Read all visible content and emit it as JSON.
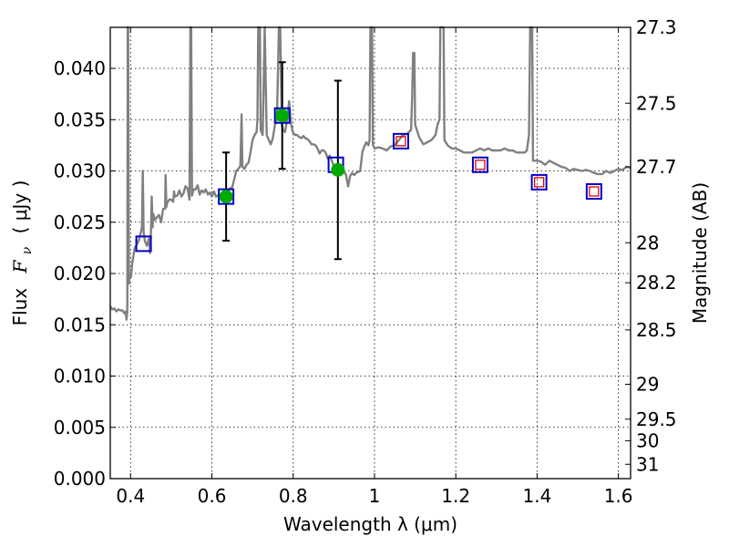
{
  "chart_data": {
    "type": "scatter",
    "xlabel": "Wavelength  λ (μm)",
    "ylabel_text": "Flux",
    "ylabel_math": "F",
    "ylabel_sub": "ν",
    "ylabel_unit": "( μJy )",
    "y2label": "Magnitude (AB)",
    "xlim": [
      0.35,
      1.63
    ],
    "ylim": [
      0.0,
      0.044
    ],
    "grid": true,
    "x_ticks": [
      {
        "value": 0.4,
        "label": "0.4"
      },
      {
        "value": 0.6,
        "label": "0.6"
      },
      {
        "value": 0.8,
        "label": "0.8"
      },
      {
        "value": 1.0,
        "label": "1"
      },
      {
        "value": 1.2,
        "label": "1.2"
      },
      {
        "value": 1.4,
        "label": "1.4"
      },
      {
        "value": 1.6,
        "label": "1.6"
      }
    ],
    "y_ticks": [
      {
        "value": 0.0,
        "label": "0.000"
      },
      {
        "value": 0.005,
        "label": "0.005"
      },
      {
        "value": 0.01,
        "label": "0.010"
      },
      {
        "value": 0.015,
        "label": "0.015"
      },
      {
        "value": 0.02,
        "label": "0.020"
      },
      {
        "value": 0.025,
        "label": "0.025"
      },
      {
        "value": 0.03,
        "label": "0.030"
      },
      {
        "value": 0.035,
        "label": "0.035"
      },
      {
        "value": 0.04,
        "label": "0.040"
      }
    ],
    "y2_ticks": [
      {
        "flux": 0.044,
        "label": "27.3"
      },
      {
        "flux": 0.0366,
        "label": "27.5"
      },
      {
        "flux": 0.0304,
        "label": "27.7"
      },
      {
        "flux": 0.023,
        "label": "28"
      },
      {
        "flux": 0.0191,
        "label": "28.2"
      },
      {
        "flux": 0.0145,
        "label": "28.5"
      },
      {
        "flux": 0.0092,
        "label": "29"
      },
      {
        "flux": 0.0058,
        "label": "29.5"
      },
      {
        "flux": 0.0037,
        "label": "30"
      },
      {
        "flux": 0.0014,
        "label": "31"
      }
    ],
    "series": [
      {
        "kind": "spectrum",
        "color": "#808080",
        "points": [
          [
            0.35,
            0.0168
          ],
          [
            0.355,
            0.0165
          ],
          [
            0.36,
            0.0166
          ],
          [
            0.365,
            0.0163
          ],
          [
            0.37,
            0.0165
          ],
          [
            0.375,
            0.0164
          ],
          [
            0.38,
            0.0164
          ],
          [
            0.385,
            0.0161
          ],
          [
            0.388,
            0.0163
          ],
          [
            0.39,
            0.0155
          ],
          [
            0.392,
            0.0162
          ],
          [
            0.393,
            0.044
          ],
          [
            0.394,
            0.044
          ],
          [
            0.396,
            0.019
          ],
          [
            0.398,
            0.02
          ],
          [
            0.401,
            0.0197
          ],
          [
            0.404,
            0.021
          ],
          [
            0.41,
            0.0225
          ],
          [
            0.415,
            0.0228
          ],
          [
            0.42,
            0.0232
          ],
          [
            0.425,
            0.024
          ],
          [
            0.428,
            0.0245
          ],
          [
            0.43,
            0.03
          ],
          [
            0.432,
            0.024
          ],
          [
            0.435,
            0.0232
          ],
          [
            0.44,
            0.0227
          ],
          [
            0.445,
            0.0234
          ],
          [
            0.448,
            0.022
          ],
          [
            0.45,
            0.0239
          ],
          [
            0.452,
            0.0275
          ],
          [
            0.454,
            0.0245
          ],
          [
            0.456,
            0.0258
          ],
          [
            0.46,
            0.0252
          ],
          [
            0.465,
            0.0255
          ],
          [
            0.47,
            0.0257
          ],
          [
            0.475,
            0.025
          ],
          [
            0.48,
            0.0263
          ],
          [
            0.485,
            0.0263
          ],
          [
            0.486,
            0.0296
          ],
          [
            0.488,
            0.0265
          ],
          [
            0.49,
            0.0269
          ],
          [
            0.495,
            0.0272
          ],
          [
            0.5,
            0.0272
          ],
          [
            0.505,
            0.027
          ],
          [
            0.507,
            0.028
          ],
          [
            0.509,
            0.0275
          ],
          [
            0.515,
            0.0276
          ],
          [
            0.52,
            0.0281
          ],
          [
            0.525,
            0.0275
          ],
          [
            0.53,
            0.0278
          ],
          [
            0.535,
            0.0285
          ],
          [
            0.54,
            0.0283
          ],
          [
            0.545,
            0.0272
          ],
          [
            0.547,
            0.044
          ],
          [
            0.549,
            0.044
          ],
          [
            0.551,
            0.0276
          ],
          [
            0.555,
            0.0282
          ],
          [
            0.56,
            0.0282
          ],
          [
            0.565,
            0.0286
          ],
          [
            0.57,
            0.0277
          ],
          [
            0.575,
            0.0281
          ],
          [
            0.58,
            0.0279
          ],
          [
            0.585,
            0.0282
          ],
          [
            0.59,
            0.0277
          ],
          [
            0.595,
            0.0279
          ],
          [
            0.6,
            0.0275
          ],
          [
            0.605,
            0.028
          ],
          [
            0.61,
            0.0275
          ],
          [
            0.615,
            0.0276
          ],
          [
            0.62,
            0.0275
          ],
          [
            0.625,
            0.0276
          ],
          [
            0.63,
            0.028
          ],
          [
            0.635,
            0.0278
          ],
          [
            0.64,
            0.0281
          ],
          [
            0.645,
            0.0283
          ],
          [
            0.65,
            0.0284
          ],
          [
            0.655,
            0.0292
          ],
          [
            0.66,
            0.03
          ],
          [
            0.665,
            0.0302
          ],
          [
            0.67,
            0.0305
          ],
          [
            0.673,
            0.0355
          ],
          [
            0.675,
            0.0304
          ],
          [
            0.68,
            0.0302
          ],
          [
            0.685,
            0.0306
          ],
          [
            0.69,
            0.0308
          ],
          [
            0.695,
            0.0318
          ],
          [
            0.7,
            0.033
          ],
          [
            0.705,
            0.0335
          ],
          [
            0.71,
            0.0338
          ],
          [
            0.712,
            0.035
          ],
          [
            0.714,
            0.044
          ],
          [
            0.718,
            0.044
          ],
          [
            0.72,
            0.034
          ],
          [
            0.725,
            0.0335
          ],
          [
            0.73,
            0.044
          ],
          [
            0.735,
            0.0335
          ],
          [
            0.74,
            0.033
          ],
          [
            0.745,
            0.0326
          ],
          [
            0.75,
            0.0332
          ],
          [
            0.755,
            0.0345
          ],
          [
            0.76,
            0.035
          ],
          [
            0.765,
            0.044
          ],
          [
            0.768,
            0.044
          ],
          [
            0.772,
            0.0345
          ],
          [
            0.775,
            0.034
          ],
          [
            0.78,
            0.0338
          ],
          [
            0.785,
            0.035
          ],
          [
            0.79,
            0.0368
          ],
          [
            0.795,
            0.0345
          ],
          [
            0.8,
            0.0337
          ],
          [
            0.805,
            0.0335
          ],
          [
            0.81,
            0.0335
          ],
          [
            0.815,
            0.0333
          ],
          [
            0.82,
            0.0332
          ],
          [
            0.825,
            0.0334
          ],
          [
            0.83,
            0.0332
          ],
          [
            0.835,
            0.0331
          ],
          [
            0.84,
            0.0329
          ],
          [
            0.845,
            0.0326
          ],
          [
            0.85,
            0.0326
          ],
          [
            0.855,
            0.0325
          ],
          [
            0.86,
            0.0322
          ],
          [
            0.865,
            0.0317
          ],
          [
            0.87,
            0.032
          ],
          [
            0.875,
            0.032
          ],
          [
            0.88,
            0.0318
          ],
          [
            0.885,
            0.0312
          ],
          [
            0.89,
            0.0315
          ],
          [
            0.895,
            0.031
          ],
          [
            0.9,
            0.0305
          ],
          [
            0.905,
            0.03
          ],
          [
            0.91,
            0.0298
          ],
          [
            0.915,
            0.0303
          ],
          [
            0.92,
            0.0302
          ],
          [
            0.925,
            0.03
          ],
          [
            0.93,
            0.0296
          ],
          [
            0.935,
            0.0285
          ],
          [
            0.94,
            0.0295
          ],
          [
            0.945,
            0.0298
          ],
          [
            0.95,
            0.0296
          ],
          [
            0.955,
            0.0298
          ],
          [
            0.96,
            0.0299
          ],
          [
            0.965,
            0.03
          ],
          [
            0.97,
            0.0318
          ],
          [
            0.975,
            0.0324
          ],
          [
            0.98,
            0.0328
          ],
          [
            0.985,
            0.0325
          ],
          [
            0.988,
            0.033
          ],
          [
            0.99,
            0.044
          ],
          [
            0.994,
            0.044
          ],
          [
            0.996,
            0.0326
          ],
          [
            1.0,
            0.0322
          ],
          [
            1.01,
            0.0323
          ],
          [
            1.02,
            0.0322
          ],
          [
            1.03,
            0.032
          ],
          [
            1.04,
            0.0324
          ],
          [
            1.05,
            0.0325
          ],
          [
            1.06,
            0.033
          ],
          [
            1.07,
            0.0335
          ],
          [
            1.08,
            0.0336
          ],
          [
            1.09,
            0.034
          ],
          [
            1.093,
            0.0375
          ],
          [
            1.095,
            0.0415
          ],
          [
            1.098,
            0.0415
          ],
          [
            1.1,
            0.0345
          ],
          [
            1.11,
            0.0333
          ],
          [
            1.12,
            0.0326
          ],
          [
            1.13,
            0.0328
          ],
          [
            1.14,
            0.033
          ],
          [
            1.15,
            0.0335
          ],
          [
            1.155,
            0.0345
          ],
          [
            1.16,
            0.035
          ],
          [
            1.162,
            0.044
          ],
          [
            1.17,
            0.044
          ],
          [
            1.172,
            0.033
          ],
          [
            1.18,
            0.0325
          ],
          [
            1.19,
            0.0322
          ],
          [
            1.2,
            0.0322
          ],
          [
            1.21,
            0.032
          ],
          [
            1.22,
            0.0318
          ],
          [
            1.23,
            0.0318
          ],
          [
            1.24,
            0.0318
          ],
          [
            1.25,
            0.032
          ],
          [
            1.26,
            0.0322
          ],
          [
            1.27,
            0.032
          ],
          [
            1.28,
            0.0322
          ],
          [
            1.29,
            0.032
          ],
          [
            1.3,
            0.032
          ],
          [
            1.31,
            0.032
          ],
          [
            1.32,
            0.0322
          ],
          [
            1.33,
            0.032
          ],
          [
            1.34,
            0.032
          ],
          [
            1.35,
            0.0318
          ],
          [
            1.36,
            0.0318
          ],
          [
            1.37,
            0.0318
          ],
          [
            1.375,
            0.032
          ],
          [
            1.38,
            0.0335
          ],
          [
            1.383,
            0.044
          ],
          [
            1.388,
            0.044
          ],
          [
            1.39,
            0.031
          ],
          [
            1.4,
            0.031
          ],
          [
            1.41,
            0.0309
          ],
          [
            1.42,
            0.0306
          ],
          [
            1.43,
            0.031
          ],
          [
            1.44,
            0.0308
          ],
          [
            1.45,
            0.0306
          ],
          [
            1.46,
            0.0304
          ],
          [
            1.47,
            0.0303
          ],
          [
            1.48,
            0.03
          ],
          [
            1.49,
            0.0302
          ],
          [
            1.5,
            0.0301
          ],
          [
            1.51,
            0.03
          ],
          [
            1.52,
            0.0301
          ],
          [
            1.53,
            0.03
          ],
          [
            1.54,
            0.0298
          ],
          [
            1.55,
            0.0297
          ],
          [
            1.56,
            0.0297
          ],
          [
            1.57,
            0.03
          ],
          [
            1.58,
            0.0298
          ],
          [
            1.59,
            0.03
          ],
          [
            1.6,
            0.0302
          ],
          [
            1.61,
            0.0301
          ],
          [
            1.62,
            0.0304
          ],
          [
            1.63,
            0.0303
          ]
        ]
      },
      {
        "kind": "observed",
        "color": "#00aa00",
        "points": [
          {
            "x": 0.635,
            "y": 0.0275,
            "yerr_low": 0.0232,
            "yerr_high": 0.0318
          },
          {
            "x": 0.773,
            "y": 0.0354,
            "yerr_low": 0.0302,
            "yerr_high": 0.0406
          },
          {
            "x": 0.91,
            "y": 0.0301,
            "yerr_low": 0.0214,
            "yerr_high": 0.0388
          }
        ]
      },
      {
        "kind": "model_blue_squares",
        "color": "#0000cc",
        "points": [
          {
            "x": 0.432,
            "y": 0.0229
          },
          {
            "x": 0.635,
            "y": 0.0275
          },
          {
            "x": 0.773,
            "y": 0.0354
          },
          {
            "x": 0.905,
            "y": 0.0306
          },
          {
            "x": 1.065,
            "y": 0.0329
          },
          {
            "x": 1.26,
            "y": 0.0306
          },
          {
            "x": 1.405,
            "y": 0.0289
          },
          {
            "x": 1.54,
            "y": 0.028
          }
        ]
      },
      {
        "kind": "model_red_squares",
        "color": "#dd0000",
        "points": [
          {
            "x": 1.065,
            "y": 0.0329
          },
          {
            "x": 1.26,
            "y": 0.0306
          },
          {
            "x": 1.405,
            "y": 0.0289
          },
          {
            "x": 1.54,
            "y": 0.028
          }
        ]
      }
    ]
  }
}
